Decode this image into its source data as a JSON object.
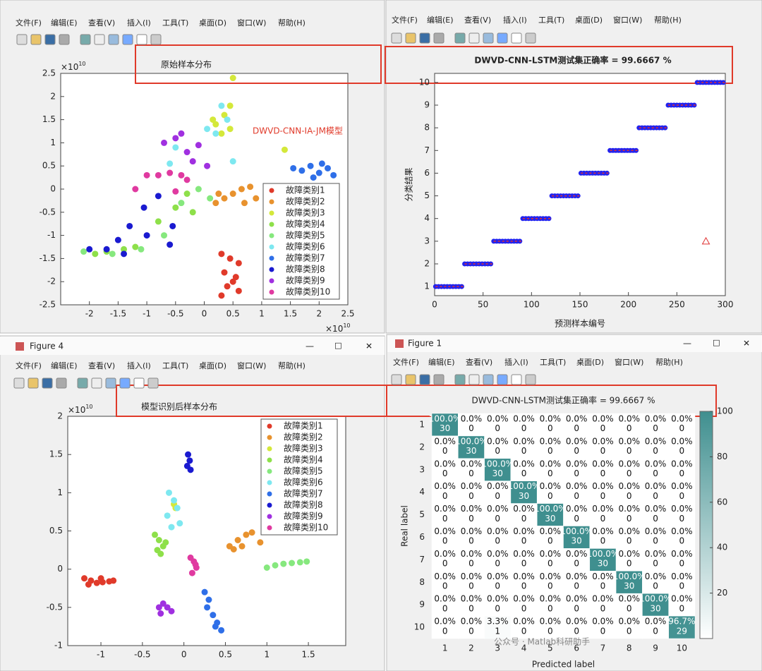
{
  "menu": [
    "文件(F)",
    "编辑(E)",
    "查看(V)",
    "插入(I)",
    "工具(T)",
    "桌面(D)",
    "窗口(W)",
    "帮助(H)"
  ],
  "windows": {
    "bottom_left_title": "Figure 4",
    "bottom_right_title": "Figure 1"
  },
  "annotations": {
    "original": "原始样本分布",
    "recognized": "模型识别后样本分布",
    "model": "DWVD-CNN-IA-JM模型",
    "watermark": "公众号 · Matlab科研助手"
  },
  "chart_data": [
    {
      "type": "scatter",
      "xlim": [
        -2.5,
        2.5
      ],
      "ylim": [
        -2.5,
        2.5
      ],
      "xticks": [
        -2,
        -1.5,
        -1,
        -0.5,
        0,
        0.5,
        1,
        1.5,
        2,
        2.5
      ],
      "yticks": [
        -2.5,
        -2,
        -1.5,
        -1,
        -0.5,
        0,
        0.5,
        1,
        1.5,
        2,
        2.5
      ],
      "x_multiplier": {
        "base": "×10",
        "exponent": "10"
      },
      "y_multiplier": {
        "base": "×10",
        "exponent": "10"
      },
      "legend": "lower right",
      "series": [
        {
          "name": "故障类别1",
          "color": "#e03a2a",
          "x": [
            0.3,
            0.45,
            0.6,
            0.35,
            0.55,
            0.4,
            0.6,
            0.3,
            0.5
          ],
          "values": [
            -1.4,
            -1.5,
            -1.6,
            -1.8,
            -1.9,
            -2.1,
            -2.2,
            -2.3,
            -2.0
          ]
        },
        {
          "name": "故障类别2",
          "color": "#e8922e",
          "x": [
            0.2,
            0.35,
            0.5,
            0.65,
            0.8,
            0.9,
            0.7,
            0.25
          ],
          "values": [
            -0.3,
            -0.2,
            -0.1,
            0,
            0.05,
            -0.2,
            -0.3,
            -0.1
          ]
        },
        {
          "name": "故障类别3",
          "color": "#d4e83a",
          "x": [
            0.2,
            0.35,
            0.45,
            0.5,
            0.3,
            0.15,
            0.45,
            1.4
          ],
          "values": [
            1.4,
            1.6,
            1.8,
            2.4,
            1.2,
            1.5,
            1.3,
            0.85
          ]
        },
        {
          "name": "故障类别4",
          "color": "#8ee04a",
          "x": [
            -1.9,
            -1.7,
            -1.4,
            -1.2,
            -0.8,
            -0.5,
            -0.3,
            -0.2
          ],
          "values": [
            -1.4,
            -1.35,
            -1.3,
            -1.25,
            -0.7,
            -0.4,
            -0.1,
            -0.5
          ]
        },
        {
          "name": "故障类别5",
          "color": "#86e87e",
          "x": [
            -2.1,
            -1.6,
            -1.1,
            -0.7,
            -0.4,
            -0.1,
            0.1
          ],
          "values": [
            -1.35,
            -1.4,
            -1.3,
            -1.0,
            -0.3,
            0,
            -0.2
          ]
        },
        {
          "name": "故障类别6",
          "color": "#7ee8f0",
          "x": [
            0.2,
            0.4,
            0.3,
            0.05,
            -0.6,
            -0.5,
            0.5
          ],
          "values": [
            1.2,
            1.5,
            1.8,
            1.3,
            0.55,
            0.9,
            0.6
          ]
        },
        {
          "name": "故障类别7",
          "color": "#2f6fe8",
          "x": [
            1.55,
            1.7,
            1.85,
            2.0,
            2.15,
            2.25,
            1.9,
            2.05
          ],
          "values": [
            0.45,
            0.4,
            0.5,
            0.35,
            0.45,
            0.3,
            0.25,
            0.55
          ]
        },
        {
          "name": "故障类别8",
          "color": "#1a1ad0",
          "x": [
            -2.0,
            -1.7,
            -1.5,
            -1.3,
            -1.4,
            -1.0,
            -0.6,
            -0.55,
            -1.05,
            -0.8
          ],
          "values": [
            -1.3,
            -1.3,
            -1.1,
            -0.8,
            -1.4,
            -1.0,
            -1.2,
            -0.8,
            -0.4,
            -0.15
          ]
        },
        {
          "name": "故障类别9",
          "color": "#a030e0",
          "x": [
            -0.7,
            -0.5,
            -0.3,
            -0.2,
            -0.1,
            0.05,
            -0.4
          ],
          "values": [
            1.0,
            1.1,
            0.8,
            0.6,
            0.95,
            0.5,
            1.2
          ]
        },
        {
          "name": "故障类别10",
          "color": "#e03aa0",
          "x": [
            -1.0,
            -0.8,
            -0.6,
            -0.4,
            -0.3,
            -1.2,
            -0.5
          ],
          "values": [
            0.3,
            0.3,
            0.35,
            0.3,
            0.2,
            0,
            -0.05
          ]
        }
      ]
    },
    {
      "type": "line",
      "title": "DWVD-CNN-LSTM测试集正确率 = 99.6667 %",
      "xlabel": "预测样本编号",
      "ylabel": "分类结果",
      "xlim": [
        0,
        300
      ],
      "ylim": [
        0.6,
        10.4
      ],
      "xticks": [
        0,
        50,
        100,
        150,
        200,
        250,
        300
      ],
      "yticks": [
        1,
        2,
        3,
        4,
        5,
        6,
        7,
        8,
        9,
        10
      ],
      "series": [
        {
          "color": "#2222ee",
          "marker": "circle",
          "x": [
            1,
            30,
            null,
            31,
            60,
            null,
            61,
            90,
            null,
            91,
            120,
            null,
            121,
            150,
            null,
            151,
            180,
            null,
            181,
            210,
            null,
            211,
            240,
            null,
            241,
            270,
            null,
            271,
            300
          ],
          "values": [
            1,
            1,
            null,
            2,
            2,
            null,
            3,
            3,
            null,
            4,
            4,
            null,
            5,
            5,
            null,
            6,
            6,
            null,
            7,
            7,
            null,
            8,
            8,
            null,
            9,
            9,
            null,
            10,
            10
          ]
        },
        {
          "color": "#e03030",
          "marker": "dash",
          "x": [
            1,
            30,
            null,
            31,
            60,
            null,
            61,
            90,
            null,
            91,
            120,
            null,
            121,
            150,
            null,
            151,
            180,
            null,
            181,
            210,
            null,
            211,
            240,
            null,
            241,
            270,
            null,
            271,
            300
          ],
          "values": [
            1,
            1,
            null,
            2,
            2,
            null,
            3,
            3,
            null,
            4,
            4,
            null,
            5,
            5,
            null,
            6,
            6,
            null,
            7,
            7,
            null,
            8,
            8,
            null,
            9,
            9,
            null,
            10,
            10
          ]
        },
        {
          "color": "#e03030",
          "marker": "triangle",
          "x": [
            280
          ],
          "values": [
            3
          ]
        }
      ]
    },
    {
      "type": "scatter",
      "xlim": [
        -1.4,
        1.95
      ],
      "ylim": [
        -1,
        2
      ],
      "xticks": [
        -1,
        -0.5,
        0,
        0.5,
        1,
        1.5
      ],
      "yticks": [
        -1,
        -0.5,
        0,
        0.5,
        1,
        1.5,
        2
      ],
      "y_multiplier": {
        "base": "×10",
        "exponent": "10"
      },
      "legend": "upper right",
      "series": [
        {
          "name": "故障类别1",
          "color": "#e03a2a",
          "x": [
            -1.2,
            -1.12,
            -1.05,
            -0.98,
            -0.9,
            -1.15,
            -1.0,
            -0.85
          ],
          "values": [
            -0.12,
            -0.15,
            -0.18,
            -0.17,
            -0.16,
            -0.2,
            -0.12,
            -0.15
          ]
        },
        {
          "name": "故障类别2",
          "color": "#e8922e",
          "x": [
            0.55,
            0.65,
            0.75,
            0.82,
            0.92,
            0.7,
            0.6
          ],
          "values": [
            0.3,
            0.38,
            0.45,
            0.48,
            0.35,
            0.3,
            0.26
          ]
        },
        {
          "name": "故障类别3",
          "color": "#d4e83a",
          "x": [
            -0.12,
            -0.1
          ],
          "values": [
            0.85,
            0.8
          ]
        },
        {
          "name": "故障类别4",
          "color": "#8ee04a",
          "x": [
            -0.35,
            -0.3,
            -0.25,
            -0.32,
            -0.28,
            -0.22
          ],
          "values": [
            0.45,
            0.38,
            0.3,
            0.25,
            0.2,
            0.35
          ]
        },
        {
          "name": "故障类别5",
          "color": "#86e87e",
          "x": [
            1.0,
            1.1,
            1.2,
            1.3,
            1.4,
            1.48
          ],
          "values": [
            0.02,
            0.05,
            0.07,
            0.08,
            0.09,
            0.1
          ]
        },
        {
          "name": "故障类别6",
          "color": "#7ee8f0",
          "x": [
            -0.18,
            -0.12,
            -0.08,
            -0.2,
            -0.05,
            -0.15
          ],
          "values": [
            1.0,
            0.9,
            0.8,
            0.7,
            0.6,
            0.55
          ]
        },
        {
          "name": "故障类别7",
          "color": "#2f6fe8",
          "x": [
            0.25,
            0.3,
            0.28,
            0.35,
            0.4,
            0.45,
            0.38
          ],
          "values": [
            -0.3,
            -0.4,
            -0.5,
            -0.6,
            -0.7,
            -0.8,
            -0.75
          ]
        },
        {
          "name": "故障类别8",
          "color": "#1a1ad0",
          "x": [
            0.05,
            0.07,
            0.04,
            0.08
          ],
          "values": [
            1.5,
            1.42,
            1.35,
            1.3
          ]
        },
        {
          "name": "故障类别9",
          "color": "#a030e0",
          "x": [
            -0.3,
            -0.25,
            -0.2,
            -0.15,
            -0.28
          ],
          "values": [
            -0.5,
            -0.45,
            -0.5,
            -0.55,
            -0.58
          ]
        },
        {
          "name": "故障类别10",
          "color": "#e03aa0",
          "x": [
            0.08,
            0.12,
            0.15,
            0.1,
            0.14
          ],
          "values": [
            0.15,
            0.1,
            0.02,
            -0.05,
            0.06
          ]
        }
      ]
    },
    {
      "type": "heatmap",
      "title": "DWVD-CNN-LSTM测试集正确率 = 99.6667 %",
      "xlabel": "Predicted label",
      "ylabel": "Real label",
      "categories": [
        1,
        2,
        3,
        4,
        5,
        6,
        7,
        8,
        9,
        10
      ],
      "color": "#3f8f8f",
      "clim": [
        0,
        100
      ],
      "cticks": [
        20,
        40,
        60,
        80,
        100
      ],
      "counts": [
        [
          30,
          0,
          0,
          0,
          0,
          0,
          0,
          0,
          0,
          0
        ],
        [
          0,
          30,
          0,
          0,
          0,
          0,
          0,
          0,
          0,
          0
        ],
        [
          0,
          0,
          30,
          0,
          0,
          0,
          0,
          0,
          0,
          0
        ],
        [
          0,
          0,
          0,
          30,
          0,
          0,
          0,
          0,
          0,
          0
        ],
        [
          0,
          0,
          0,
          0,
          30,
          0,
          0,
          0,
          0,
          0
        ],
        [
          0,
          0,
          0,
          0,
          0,
          30,
          0,
          0,
          0,
          0
        ],
        [
          0,
          0,
          0,
          0,
          0,
          0,
          30,
          0,
          0,
          0
        ],
        [
          0,
          0,
          0,
          0,
          0,
          0,
          0,
          30,
          0,
          0
        ],
        [
          0,
          0,
          0,
          0,
          0,
          0,
          0,
          0,
          30,
          0
        ],
        [
          0,
          0,
          1,
          0,
          0,
          0,
          0,
          0,
          0,
          29
        ]
      ],
      "percent": [
        [
          100,
          0,
          0,
          0,
          0,
          0,
          0,
          0,
          0,
          0
        ],
        [
          0,
          100,
          0,
          0,
          0,
          0,
          0,
          0,
          0,
          0
        ],
        [
          0,
          0,
          100,
          0,
          0,
          0,
          0,
          0,
          0,
          0
        ],
        [
          0,
          0,
          0,
          100,
          0,
          0,
          0,
          0,
          0,
          0
        ],
        [
          0,
          0,
          0,
          0,
          100,
          0,
          0,
          0,
          0,
          0
        ],
        [
          0,
          0,
          0,
          0,
          0,
          100,
          0,
          0,
          0,
          0
        ],
        [
          0,
          0,
          0,
          0,
          0,
          0,
          100,
          0,
          0,
          0
        ],
        [
          0,
          0,
          0,
          0,
          0,
          0,
          0,
          100,
          0,
          0
        ],
        [
          0,
          0,
          0,
          0,
          0,
          0,
          0,
          0,
          100,
          0
        ],
        [
          0,
          0,
          3.3,
          0,
          0,
          0,
          0,
          0,
          0,
          96.7
        ]
      ],
      "percent_labels": [
        [
          "100.0%",
          "0.0%",
          "0.0%",
          "0.0%",
          "0.0%",
          "0.0%",
          "0.0%",
          "0.0%",
          "0.0%",
          "0.0%"
        ],
        [
          "0.0%",
          "100.0%",
          "0.0%",
          "0.0%",
          "0.0%",
          "0.0%",
          "0.0%",
          "0.0%",
          "0.0%",
          "0.0%"
        ],
        [
          "0.0%",
          "0.0%",
          "100.0%",
          "0.0%",
          "0.0%",
          "0.0%",
          "0.0%",
          "0.0%",
          "0.0%",
          "0.0%"
        ],
        [
          "0.0%",
          "0.0%",
          "0.0%",
          "100.0%",
          "0.0%",
          "0.0%",
          "0.0%",
          "0.0%",
          "0.0%",
          "0.0%"
        ],
        [
          "0.0%",
          "0.0%",
          "0.0%",
          "0.0%",
          "100.0%",
          "0.0%",
          "0.0%",
          "0.0%",
          "0.0%",
          "0.0%"
        ],
        [
          "0.0%",
          "0.0%",
          "0.0%",
          "0.0%",
          "0.0%",
          "100.0%",
          "0.0%",
          "0.0%",
          "0.0%",
          "0.0%"
        ],
        [
          "0.0%",
          "0.0%",
          "0.0%",
          "0.0%",
          "0.0%",
          "0.0%",
          "100.0%",
          "0.0%",
          "0.0%",
          "0.0%"
        ],
        [
          "0.0%",
          "0.0%",
          "0.0%",
          "0.0%",
          "0.0%",
          "0.0%",
          "0.0%",
          "100.0%",
          "0.0%",
          "0.0%"
        ],
        [
          "0.0%",
          "0.0%",
          "0.0%",
          "0.0%",
          "0.0%",
          "0.0%",
          "0.0%",
          "0.0%",
          "100.0%",
          "0.0%"
        ],
        [
          "0.0%",
          "0.0%",
          "3.3%",
          "0.0%",
          "0.0%",
          "0.0%",
          "0.0%",
          "0.0%",
          "0.0%",
          "96.7%"
        ]
      ]
    }
  ]
}
